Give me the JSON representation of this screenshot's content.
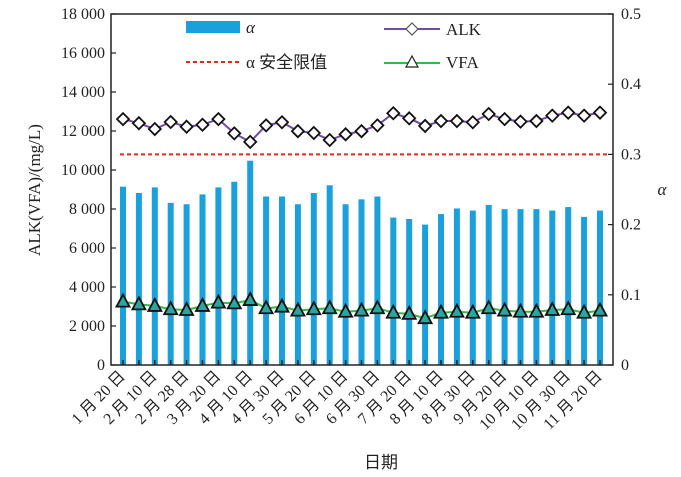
{
  "chart_data": {
    "type": "bar+line",
    "xlabel": "日期",
    "ylabel_left": "ALK(VFA)/(mg/L)",
    "ylabel_right": "α",
    "ylim_left": [
      0,
      18000
    ],
    "ylim_right": [
      0,
      0.5
    ],
    "yticks_left": [
      "0",
      "2 000",
      "4 000",
      "6 000",
      "8 000",
      "10 000",
      "12 000",
      "14 000",
      "16 000",
      "18 000"
    ],
    "yticks_right": [
      "0",
      "0.1",
      "0.2",
      "0.3",
      "0.4",
      "0.5"
    ],
    "x_tick_labels": [
      "1 月 20 日",
      "2 月 10 日",
      "2 月 28 日",
      "3 月 20 日",
      "4 月 10 日",
      "4 月 30 日",
      "5 月 20 日",
      "6 月 10 日",
      "6 月 30 日",
      "7 月 20 日",
      "8 月 10 日",
      "8 月 30 日",
      "9 月 20 日",
      "10 月 10 日",
      "10 月 30 日",
      "11 月 20 日"
    ],
    "grid": false,
    "legend_placement": "top",
    "series": [
      {
        "name": "α",
        "type": "bar",
        "axis": "right",
        "color": "#1aa0db",
        "values": [
          0.254,
          0.245,
          0.253,
          0.231,
          0.229,
          0.243,
          0.253,
          0.261,
          0.291,
          0.24,
          0.24,
          0.229,
          0.245,
          0.256,
          0.229,
          0.236,
          0.24,
          0.21,
          0.208,
          0.2,
          0.215,
          0.223,
          0.22,
          0.228,
          0.222,
          0.222,
          0.222,
          0.22,
          0.225,
          0.211,
          0.22
        ]
      },
      {
        "name": "ALK",
        "type": "line",
        "axis": "left",
        "color": "#6f4aa6",
        "marker": "diamond",
        "values": [
          12610,
          12400,
          12100,
          12460,
          12220,
          12320,
          12610,
          11880,
          11440,
          12290,
          12450,
          11990,
          11900,
          11540,
          11830,
          11990,
          12290,
          12910,
          12650,
          12260,
          12510,
          12510,
          12450,
          12870,
          12610,
          12480,
          12510,
          12790,
          12940,
          12790,
          12940
        ]
      },
      {
        "name": "VFA",
        "type": "line",
        "axis": "left",
        "color": "#3cb54a",
        "marker": "triangle",
        "values": [
          3250,
          3110,
          3030,
          2860,
          2820,
          3030,
          3200,
          3160,
          3330,
          2910,
          2990,
          2790,
          2860,
          2910,
          2730,
          2790,
          2910,
          2680,
          2620,
          2400,
          2680,
          2730,
          2680,
          2910,
          2790,
          2730,
          2730,
          2820,
          2860,
          2680,
          2790
        ]
      },
      {
        "name": "α 安全限值",
        "type": "hline",
        "axis": "right",
        "color": "#e8281e",
        "value": 0.3
      }
    ]
  }
}
